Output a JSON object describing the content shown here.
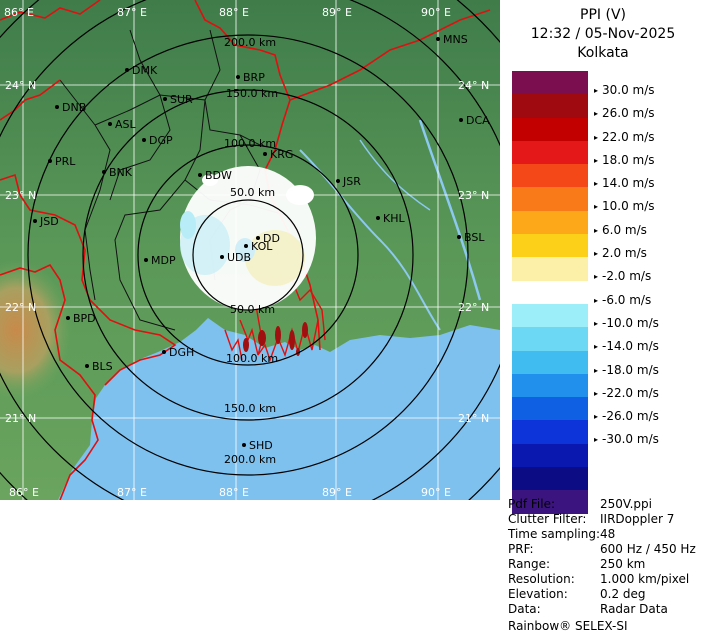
{
  "map": {
    "lon_labels": [
      "86° E",
      "87° E",
      "88° E",
      "89° E",
      "90° E"
    ],
    "lat_labels": [
      "24° N",
      "23° N",
      "22° N",
      "21° N"
    ],
    "ring_labels": [
      "50.0 km",
      "100.0 km",
      "150.0 km",
      "200.0 km"
    ],
    "stations": [
      {
        "code": "MNS"
      },
      {
        "code": "DMK"
      },
      {
        "code": "BRP"
      },
      {
        "code": "DNB"
      },
      {
        "code": "SUR"
      },
      {
        "code": "ASL"
      },
      {
        "code": "DGP"
      },
      {
        "code": "DCA"
      },
      {
        "code": "PRL"
      },
      {
        "code": "BNK"
      },
      {
        "code": "KRG"
      },
      {
        "code": "BDW"
      },
      {
        "code": "JSR"
      },
      {
        "code": "JSD"
      },
      {
        "code": "KHL"
      },
      {
        "code": "MDP"
      },
      {
        "code": "DD"
      },
      {
        "code": "KOL"
      },
      {
        "code": "UDB"
      },
      {
        "code": "BSL"
      },
      {
        "code": "BPD"
      },
      {
        "code": "DGH"
      },
      {
        "code": "BLS"
      },
      {
        "code": "SHD"
      }
    ],
    "colors": {
      "sea": "#7ec0ee",
      "land": "#4f8f58",
      "boundary": "#e01010",
      "rings": "#000000"
    }
  },
  "header": {
    "product": "PPI (V)",
    "datetime": "12:32 / 05-Nov-2025",
    "station": "Kolkata"
  },
  "legend": {
    "colors": [
      "#7a0e4e",
      "#9e0a10",
      "#c20000",
      "#e41818",
      "#f44818",
      "#f87a18",
      "#fca818",
      "#fcd018",
      "#fcf0a8",
      "#ffffff",
      "#9ceef8",
      "#6cd8f4",
      "#40bcf0",
      "#2090ec",
      "#1060e4",
      "#0c34d8",
      "#0a18b0",
      "#0c0c84",
      "#3c1480"
    ],
    "labels": [
      "30.0 m/s",
      "26.0 m/s",
      "22.0 m/s",
      "18.0 m/s",
      "14.0 m/s",
      "10.0 m/s",
      "6.0 m/s",
      "2.0 m/s",
      "-2.0 m/s",
      "-6.0 m/s",
      "-10.0 m/s",
      "-14.0 m/s",
      "-18.0 m/s",
      "-22.0 m/s",
      "-26.0 m/s",
      "-30.0 m/s"
    ]
  },
  "info": {
    "rows": [
      {
        "key": "Pdf File:",
        "value": "250V.ppi"
      },
      {
        "key": "Clutter Filter:",
        "value": "IIRDoppler 7"
      },
      {
        "key": "Time sampling:",
        "value": "48"
      },
      {
        "key": "PRF:",
        "value": "600 Hz / 450 Hz"
      },
      {
        "key": "Range:",
        "value": "250 km"
      },
      {
        "key": "Resolution:",
        "value": "1.000 km/pixel"
      },
      {
        "key": "Elevation:",
        "value": "0.2 deg"
      },
      {
        "key": "Data:",
        "value": "Radar Data"
      }
    ],
    "vendor": "Rainbow® SELEX-SI"
  }
}
